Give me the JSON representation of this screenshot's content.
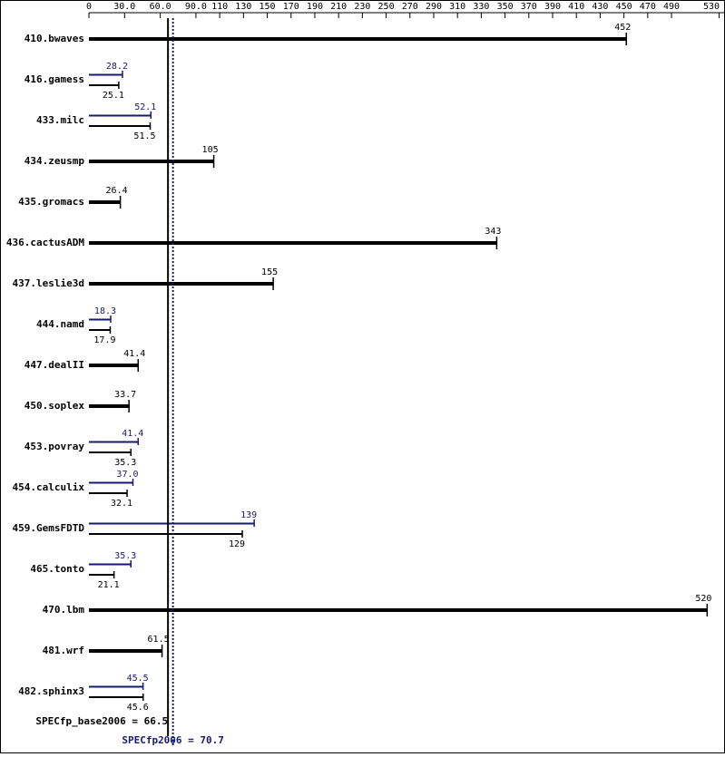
{
  "chart_data": {
    "type": "bar",
    "orientation": "horizontal",
    "categories": [
      "410.bwaves",
      "416.gamess",
      "433.milc",
      "434.zeusmp",
      "435.gromacs",
      "436.cactusADM",
      "437.leslie3d",
      "444.namd",
      "447.dealII",
      "450.soplex",
      "453.povray",
      "454.calculix",
      "459.GemsFDTD",
      "465.tonto",
      "470.lbm",
      "481.wrf",
      "482.sphinx3"
    ],
    "series": [
      {
        "color": "#191970",
        "values": [
          null,
          28.2,
          52.1,
          null,
          null,
          null,
          null,
          18.3,
          null,
          null,
          41.4,
          37.0,
          139,
          35.3,
          null,
          null,
          45.5
        ],
        "value_labels": [
          null,
          "28.2",
          "52.1",
          null,
          null,
          null,
          null,
          "18.3",
          null,
          null,
          "41.4",
          "37.0",
          "139",
          "35.3",
          null,
          null,
          "45.5"
        ]
      },
      {
        "color": "#000000",
        "values": [
          452,
          25.1,
          51.5,
          105,
          26.4,
          343,
          155,
          17.9,
          41.4,
          33.7,
          35.3,
          32.1,
          129,
          21.1,
          520,
          61.5,
          45.6
        ]
      }
    ],
    "xlim": [
      0,
      535
    ],
    "xticks": [
      0,
      {
        "value": 30,
        "label": "30.0"
      },
      {
        "value": 60,
        "label": "60.0"
      },
      {
        "value": 90,
        "label": "90.0"
      },
      110,
      130,
      150,
      170,
      190,
      210,
      230,
      250,
      270,
      290,
      310,
      330,
      350,
      370,
      390,
      410,
      430,
      450,
      470,
      490,
      530
    ],
    "reference_lines": [
      {
        "label": "SPECfp_base2006 = 66.5",
        "value": 66.5,
        "color": "#000000"
      },
      {
        "label": "SPECfp2006 = 70.7",
        "value": 70.7,
        "color": "#191970"
      }
    ]
  }
}
